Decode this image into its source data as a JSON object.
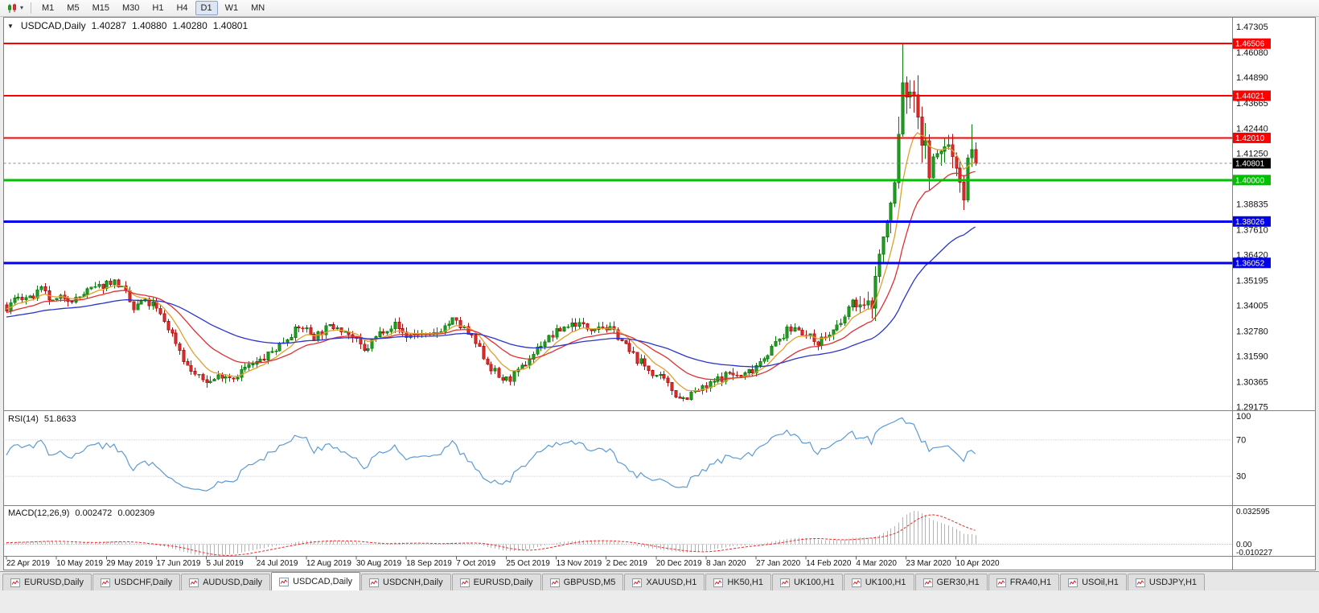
{
  "toolbar": {
    "timeframes": [
      "M1",
      "M5",
      "M15",
      "M30",
      "H1",
      "H4",
      "D1",
      "W1",
      "MN"
    ],
    "active_timeframe": "D1"
  },
  "icons": {
    "toolbar_caret": "▾",
    "symbol_dropdown": "▼"
  },
  "chart_header": {
    "symbol_label": "USDCAD,Daily",
    "open": "1.40287",
    "high": "1.40880",
    "low": "1.40280",
    "close": "1.40801"
  },
  "indicators": {
    "rsi_label": "RSI(14)",
    "rsi_value": "51.8633",
    "macd_label": "MACD(12,26,9)",
    "macd_value": "0.002472",
    "macd_signal": "0.002309"
  },
  "colors": {
    "up_fill": "#1fa51f",
    "up_stroke": "#0c7a0c",
    "down_fill": "#e33030",
    "down_stroke": "#b01212",
    "ma_fast": "#e0a030",
    "ma_mid": "#e03030",
    "ma_slow": "#2b35cc",
    "rsi_line": "#5b9bd5",
    "macd_hist": "#b4b4b4",
    "macd_signal": "#ff2020",
    "hline_red": "#ff0000",
    "hline_green": "#00c000",
    "hline_blue": "#0000ee",
    "badge_current_bg": "#000000",
    "frame": "#808080"
  },
  "chart_data": {
    "type": "candlestick",
    "symbol": "USDCAD",
    "timeframe": "Daily",
    "current_price": 1.40801,
    "ylim": [
      1.291,
      1.4755
    ],
    "y_axis_labels": [
      "1.47305",
      "1.46080",
      "1.44890",
      "1.43665",
      "1.42440",
      "1.41250",
      "1.40025",
      "1.38835",
      "1.37610",
      "1.36420",
      "1.35195",
      "1.34005",
      "1.32780",
      "1.31590",
      "1.30365",
      "1.29175"
    ],
    "x_axis_labels": [
      [
        0,
        "22 Apr 2019"
      ],
      [
        13,
        "10 May 2019"
      ],
      [
        26,
        "29 May 2019"
      ],
      [
        39,
        "17 Jun 2019"
      ],
      [
        52,
        "5 Jul 2019"
      ],
      [
        65,
        "24 Jul 2019"
      ],
      [
        78,
        "12 Aug 2019"
      ],
      [
        91,
        "30 Aug 2019"
      ],
      [
        104,
        "18 Sep 2019"
      ],
      [
        117,
        "7 Oct 2019"
      ],
      [
        130,
        "25 Oct 2019"
      ],
      [
        143,
        "13 Nov 2019"
      ],
      [
        156,
        "2 Dec 2019"
      ],
      [
        169,
        "20 Dec 2019"
      ],
      [
        182,
        "8 Jan 2020"
      ],
      [
        195,
        "27 Jan 2020"
      ],
      [
        208,
        "14 Feb 2020"
      ],
      [
        221,
        "4 Mar 2020"
      ],
      [
        234,
        "23 Mar 2020"
      ],
      [
        247,
        "10 Apr 2020"
      ]
    ],
    "horizontal_lines": [
      {
        "price": 1.46506,
        "color": "#ff0000",
        "width": 2
      },
      {
        "price": 1.44021,
        "color": "#ff0000",
        "width": 2
      },
      {
        "price": 1.4201,
        "color": "#ff0000",
        "width": 2
      },
      {
        "price": 1.4,
        "color": "#00c000",
        "width": 3
      },
      {
        "price": 1.38026,
        "color": "#0000ee",
        "width": 3
      },
      {
        "price": 1.36052,
        "color": "#0000ee",
        "width": 3
      }
    ],
    "price_path": {
      "seed": 7,
      "pre_history": 70,
      "visible_count": 253,
      "anchors": [
        [
          -70,
          1.333
        ],
        [
          -55,
          1.329
        ],
        [
          -40,
          1.336
        ],
        [
          -25,
          1.331
        ],
        [
          -12,
          1.3345
        ],
        [
          -6,
          1.339
        ],
        [
          0,
          1.3385
        ],
        [
          3,
          1.345
        ],
        [
          6,
          1.343
        ],
        [
          9,
          1.3475
        ],
        [
          12,
          1.3415
        ],
        [
          15,
          1.3445
        ],
        [
          18,
          1.343
        ],
        [
          21,
          1.347
        ],
        [
          24,
          1.349
        ],
        [
          27,
          1.352
        ],
        [
          29,
          1.3505
        ],
        [
          31,
          1.3455
        ],
        [
          33,
          1.338
        ],
        [
          35,
          1.342
        ],
        [
          38,
          1.3405
        ],
        [
          41,
          1.333
        ],
        [
          44,
          1.323
        ],
        [
          47,
          1.311
        ],
        [
          50,
          1.3055
        ],
        [
          53,
          1.304
        ],
        [
          56,
          1.3075
        ],
        [
          59,
          1.306
        ],
        [
          62,
          1.3105
        ],
        [
          65,
          1.3125
        ],
        [
          68,
          1.3165
        ],
        [
          71,
          1.3215
        ],
        [
          74,
          1.327
        ],
        [
          77,
          1.33
        ],
        [
          80,
          1.3255
        ],
        [
          83,
          1.329
        ],
        [
          86,
          1.331
        ],
        [
          89,
          1.3265
        ],
        [
          91,
          1.323
        ],
        [
          93,
          1.318
        ],
        [
          95,
          1.323
        ],
        [
          98,
          1.329
        ],
        [
          101,
          1.331
        ],
        [
          104,
          1.3255
        ],
        [
          107,
          1.327
        ],
        [
          110,
          1.325
        ],
        [
          113,
          1.329
        ],
        [
          116,
          1.333
        ],
        [
          119,
          1.329
        ],
        [
          122,
          1.322
        ],
        [
          125,
          1.313
        ],
        [
          128,
          1.306
        ],
        [
          130,
          1.3045
        ],
        [
          133,
          1.308
        ],
        [
          136,
          1.315
        ],
        [
          139,
          1.322
        ],
        [
          142,
          1.326
        ],
        [
          145,
          1.33
        ],
        [
          148,
          1.332
        ],
        [
          151,
          1.3295
        ],
        [
          154,
          1.331
        ],
        [
          156,
          1.3295
        ],
        [
          159,
          1.326
        ],
        [
          162,
          1.318
        ],
        [
          165,
          1.313
        ],
        [
          168,
          1.308
        ],
        [
          171,
          1.304
        ],
        [
          174,
          1.298
        ],
        [
          176,
          1.296
        ],
        [
          179,
          1.299
        ],
        [
          182,
          1.301
        ],
        [
          185,
          1.305
        ],
        [
          188,
          1.308
        ],
        [
          191,
          1.306
        ],
        [
          194,
          1.31
        ],
        [
          197,
          1.316
        ],
        [
          200,
          1.322
        ],
        [
          203,
          1.328
        ],
        [
          206,
          1.33
        ],
        [
          208,
          1.3255
        ],
        [
          211,
          1.323
        ],
        [
          214,
          1.3265
        ],
        [
          217,
          1.331
        ],
        [
          219,
          1.339
        ],
        [
          221,
          1.342
        ],
        [
          223,
          1.3385
        ],
        [
          225,
          1.342
        ],
        [
          227,
          1.365
        ],
        [
          229,
          1.378
        ],
        [
          231,
          1.398
        ],
        [
          232,
          1.42
        ],
        [
          233,
          1.448
        ],
        [
          234,
          1.442
        ],
        [
          235,
          1.435
        ],
        [
          236,
          1.446
        ],
        [
          237,
          1.433
        ],
        [
          238,
          1.42
        ],
        [
          240,
          1.406
        ],
        [
          242,
          1.409
        ],
        [
          244,
          1.418
        ],
        [
          246,
          1.412
        ],
        [
          248,
          1.403
        ],
        [
          249,
          1.392
        ],
        [
          250,
          1.408
        ],
        [
          251,
          1.418
        ],
        [
          252,
          1.40801
        ]
      ],
      "volatility": [
        [
          -70,
          0.0045
        ],
        [
          218,
          0.0045
        ],
        [
          224,
          0.009
        ],
        [
          229,
          0.015
        ],
        [
          233,
          0.022
        ],
        [
          236,
          0.019
        ],
        [
          240,
          0.014
        ],
        [
          244,
          0.012
        ],
        [
          248,
          0.01
        ],
        [
          252,
          0.012
        ]
      ],
      "forced": [
        {
          "index": 233,
          "high": 1.4655
        },
        {
          "index": 176,
          "low": 1.2948
        },
        {
          "index": 249,
          "low": 1.3858
        },
        {
          "index": 251,
          "high": 1.4265
        }
      ]
    },
    "moving_averages": [
      {
        "period": 8,
        "type": "ema",
        "color": "#e0a030"
      },
      {
        "period": 21,
        "type": "ema",
        "color": "#e03030"
      },
      {
        "period": 55,
        "type": "ema",
        "color": "#2b35cc"
      }
    ],
    "rsi": {
      "period": 14,
      "levels": [
        100,
        70,
        30
      ],
      "color": "#5b9bd5",
      "current": 51.8633
    },
    "macd": {
      "fast": 12,
      "slow": 26,
      "signal": 9,
      "range": [
        -0.010227,
        0.032595
      ],
      "axis_labels": [
        "0.032595",
        "0.00",
        "-0.010227"
      ],
      "histogram_color": "#b4b4b4",
      "signal_color": "#ff2020"
    }
  },
  "bottom_tabs": {
    "items": [
      "EURUSD,Daily",
      "USDCHF,Daily",
      "AUDUSD,Daily",
      "USDCAD,Daily",
      "USDCNH,Daily",
      "EURUSD,Daily",
      "GBPUSD,M5",
      "XAUUSD,H1",
      "HK50,H1",
      "UK100,H1",
      "UK100,H1",
      "GER30,H1",
      "FRA40,H1",
      "USOil,H1",
      "USDJPY,H1"
    ],
    "active_index": 3
  }
}
